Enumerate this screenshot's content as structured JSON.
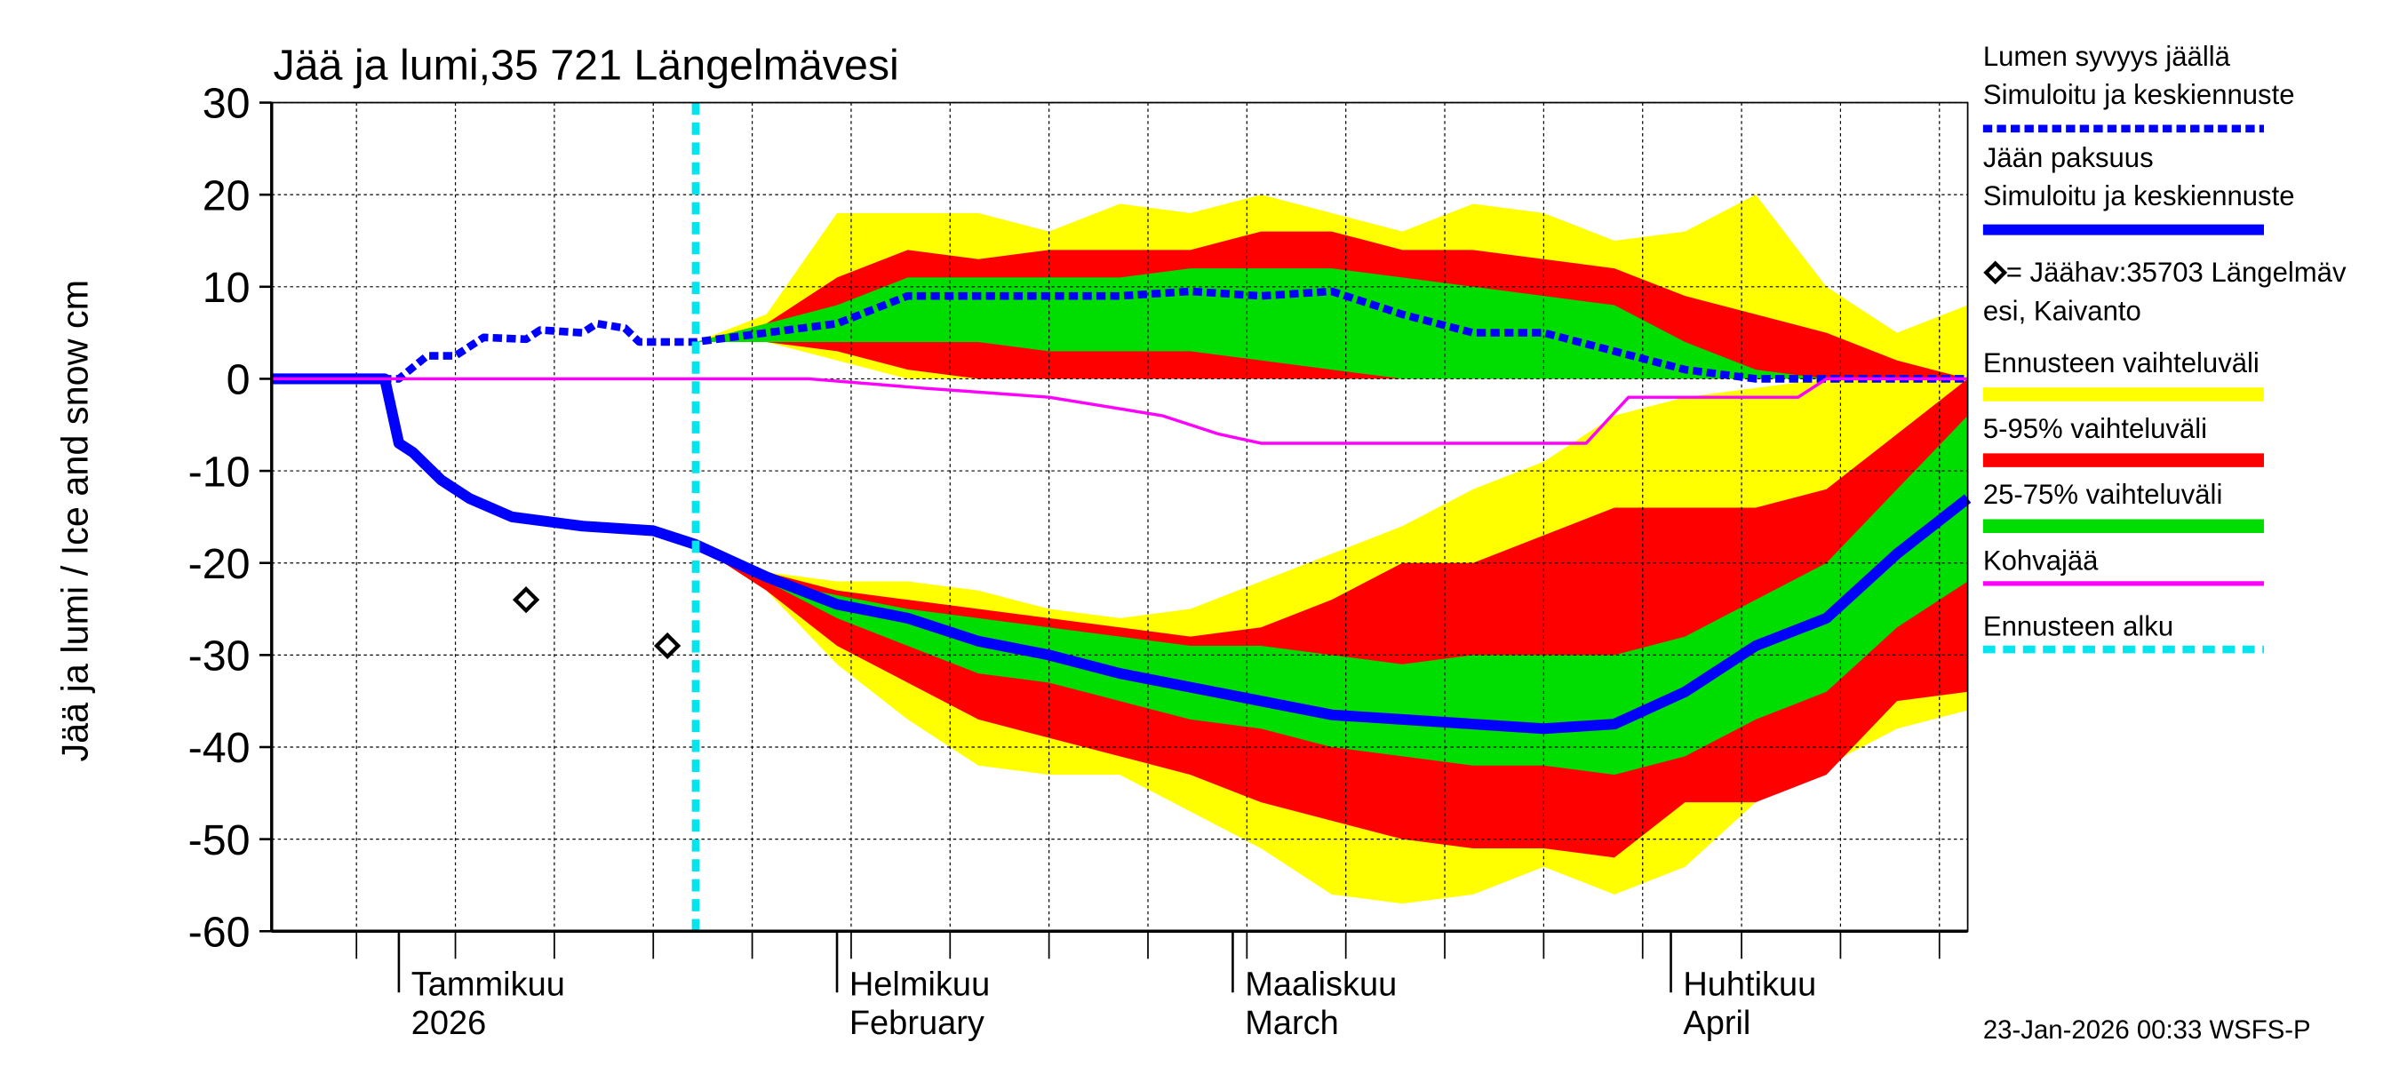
{
  "chart_data": {
    "type": "band",
    "title": "Jää ja lumi,35 721 Längelmävesi",
    "ylabel": "Jää ja lumi / Ice and snow    cm",
    "timestamp": "23-Jan-2026 00:33 WSFS-P",
    "xlim": [
      0,
      120
    ],
    "xticks": [
      {
        "value": 9,
        "label": [
          "Tammikuu",
          "2026"
        ]
      },
      {
        "value": 40,
        "label": [
          "Helmikuu",
          "February"
        ]
      },
      {
        "value": 68,
        "label": [
          "Maaliskuu",
          "March"
        ]
      },
      {
        "value": 99,
        "label": [
          "Huhtikuu",
          "April"
        ]
      }
    ],
    "xgrid": [
      6,
      13,
      20,
      27,
      34,
      41,
      48,
      55,
      62,
      69,
      76,
      83,
      90,
      97,
      104,
      111,
      118
    ],
    "ylim": [
      -60,
      30
    ],
    "yticks": [
      -60,
      -50,
      -40,
      -30,
      -20,
      -10,
      0,
      10,
      20,
      30
    ],
    "grid": true,
    "band_x": [
      30,
      35,
      40,
      45,
      50,
      55,
      60,
      65,
      70,
      75,
      80,
      85,
      90,
      95,
      100,
      105,
      110,
      115,
      120
    ],
    "bands": [
      {
        "name": "Ennusteen vaihteluväli",
        "color": "#ffff00",
        "ice_high": [
          -18,
          -21,
          -22,
          -22,
          -23,
          -25,
          -26,
          -25,
          -22,
          -19,
          -16,
          -12,
          -9,
          -4,
          -2,
          -1,
          0,
          0,
          0
        ],
        "ice_low": [
          -18,
          -23,
          -31,
          -37,
          -42,
          -43,
          -43,
          -47,
          -51,
          -56,
          -57,
          -56,
          -53,
          -56,
          -53,
          -46,
          -42,
          -38,
          -36
        ],
        "snow_low": [
          4,
          4,
          2,
          0,
          0,
          0,
          0,
          0,
          0,
          0,
          0,
          0,
          0,
          0,
          0,
          0,
          0,
          0,
          0
        ],
        "snow_high": [
          4,
          7,
          18,
          18,
          18,
          16,
          19,
          18,
          20,
          18,
          16,
          19,
          18,
          15,
          16,
          20,
          10,
          5,
          8
        ]
      },
      {
        "name": "5-95% vaihteluväli",
        "color": "#ff0000",
        "ice_high": [
          -18,
          -21,
          -23,
          -24,
          -25,
          -26,
          -27,
          -28,
          -27,
          -24,
          -20,
          -20,
          -17,
          -14,
          -14,
          -14,
          -12,
          -6,
          0
        ],
        "ice_low": [
          -18,
          -23,
          -29,
          -33,
          -37,
          -39,
          -41,
          -43,
          -46,
          -48,
          -50,
          -51,
          -51,
          -52,
          -46,
          -46,
          -43,
          -35,
          -34
        ],
        "snow_low": [
          4,
          4,
          3,
          1,
          0,
          0,
          0,
          0,
          0,
          0,
          0,
          0,
          0,
          0,
          0,
          0,
          0,
          0,
          0
        ],
        "snow_high": [
          4,
          6,
          11,
          14,
          13,
          14,
          14,
          14,
          16,
          16,
          14,
          14,
          13,
          12,
          9,
          7,
          5,
          2,
          0
        ]
      },
      {
        "name": "25-75% vaihteluväli",
        "color": "#00dd00",
        "ice_high": [
          -18,
          -22,
          -23.5,
          -25,
          -26,
          -27,
          -28,
          -29,
          -29,
          -30,
          -31,
          -30,
          -30,
          -30,
          -28,
          -24,
          -20,
          -12,
          -4
        ],
        "ice_low": [
          -18,
          -22,
          -26,
          -29,
          -32,
          -33,
          -35,
          -37,
          -38,
          -40,
          -41,
          -42,
          -42,
          -43,
          -41,
          -37,
          -34,
          -27,
          -22
        ],
        "snow_low": [
          4,
          4,
          4,
          4,
          4,
          3,
          3,
          3,
          2,
          1,
          0,
          0,
          0,
          0,
          0,
          0,
          0,
          0,
          0
        ],
        "snow_high": [
          4,
          6,
          8,
          11,
          11,
          11,
          11,
          12,
          12,
          12,
          11,
          10,
          9,
          8,
          4,
          1,
          0,
          0,
          0
        ]
      }
    ],
    "series": [
      {
        "name": [
          "Lumen syvyys jäällä",
          "Simuloitu ja keskiennuste"
        ],
        "color": "#0000ff",
        "style": "dashed",
        "width": 5,
        "x": [
          0,
          9,
          11,
          13,
          15,
          18,
          19,
          22,
          23,
          25,
          26,
          30,
          35,
          40,
          45,
          50,
          55,
          60,
          65,
          70,
          75,
          80,
          85,
          90,
          95,
          100,
          105,
          110,
          115,
          120
        ],
        "values": [
          0,
          0,
          2.5,
          2.5,
          4.5,
          4.3,
          5.3,
          5,
          6,
          5.5,
          4,
          4,
          5,
          6,
          9,
          9,
          9,
          9,
          9.5,
          9,
          9.5,
          7,
          5,
          5,
          3,
          1,
          0,
          0,
          0,
          0
        ]
      },
      {
        "name": [
          "Jään paksuus",
          "Simuloitu ja keskiennuste"
        ],
        "color": "#0000ff",
        "style": "solid",
        "width": 7,
        "x": [
          0,
          8,
          9,
          10,
          12,
          14,
          17,
          22,
          27,
          30,
          35,
          40,
          45,
          50,
          55,
          60,
          65,
          70,
          75,
          80,
          85,
          90,
          95,
          100,
          105,
          110,
          115,
          120
        ],
        "values": [
          0,
          0,
          -7,
          -8,
          -11,
          -13,
          -15,
          -16,
          -16.5,
          -18,
          -21.5,
          -24.5,
          -26,
          -28.5,
          -30,
          -32,
          -33.5,
          -35,
          -36.5,
          -37,
          -37.5,
          -38,
          -37.5,
          -34,
          -29,
          -26,
          -19,
          -13
        ]
      },
      {
        "name": [
          "Kohvajää"
        ],
        "color": "#ff00ff",
        "style": "solid",
        "width": 2,
        "x": [
          0,
          38,
          46,
          55,
          63,
          67,
          70,
          93,
          96,
          108,
          110,
          120
        ],
        "values": [
          0,
          0,
          -1,
          -2,
          -4,
          -6,
          -7,
          -7,
          -2,
          -2,
          0,
          0
        ]
      }
    ],
    "points": {
      "name": [
        "= Jäähav:35703 Längelmäv",
        "esi, Kaivanto"
      ],
      "color": "#000000",
      "x": [
        18,
        28
      ],
      "values": [
        -24,
        -29
      ]
    },
    "forecast_start": {
      "name": "Ennusteen alku",
      "color": "#00e5ee",
      "x": 30
    }
  }
}
